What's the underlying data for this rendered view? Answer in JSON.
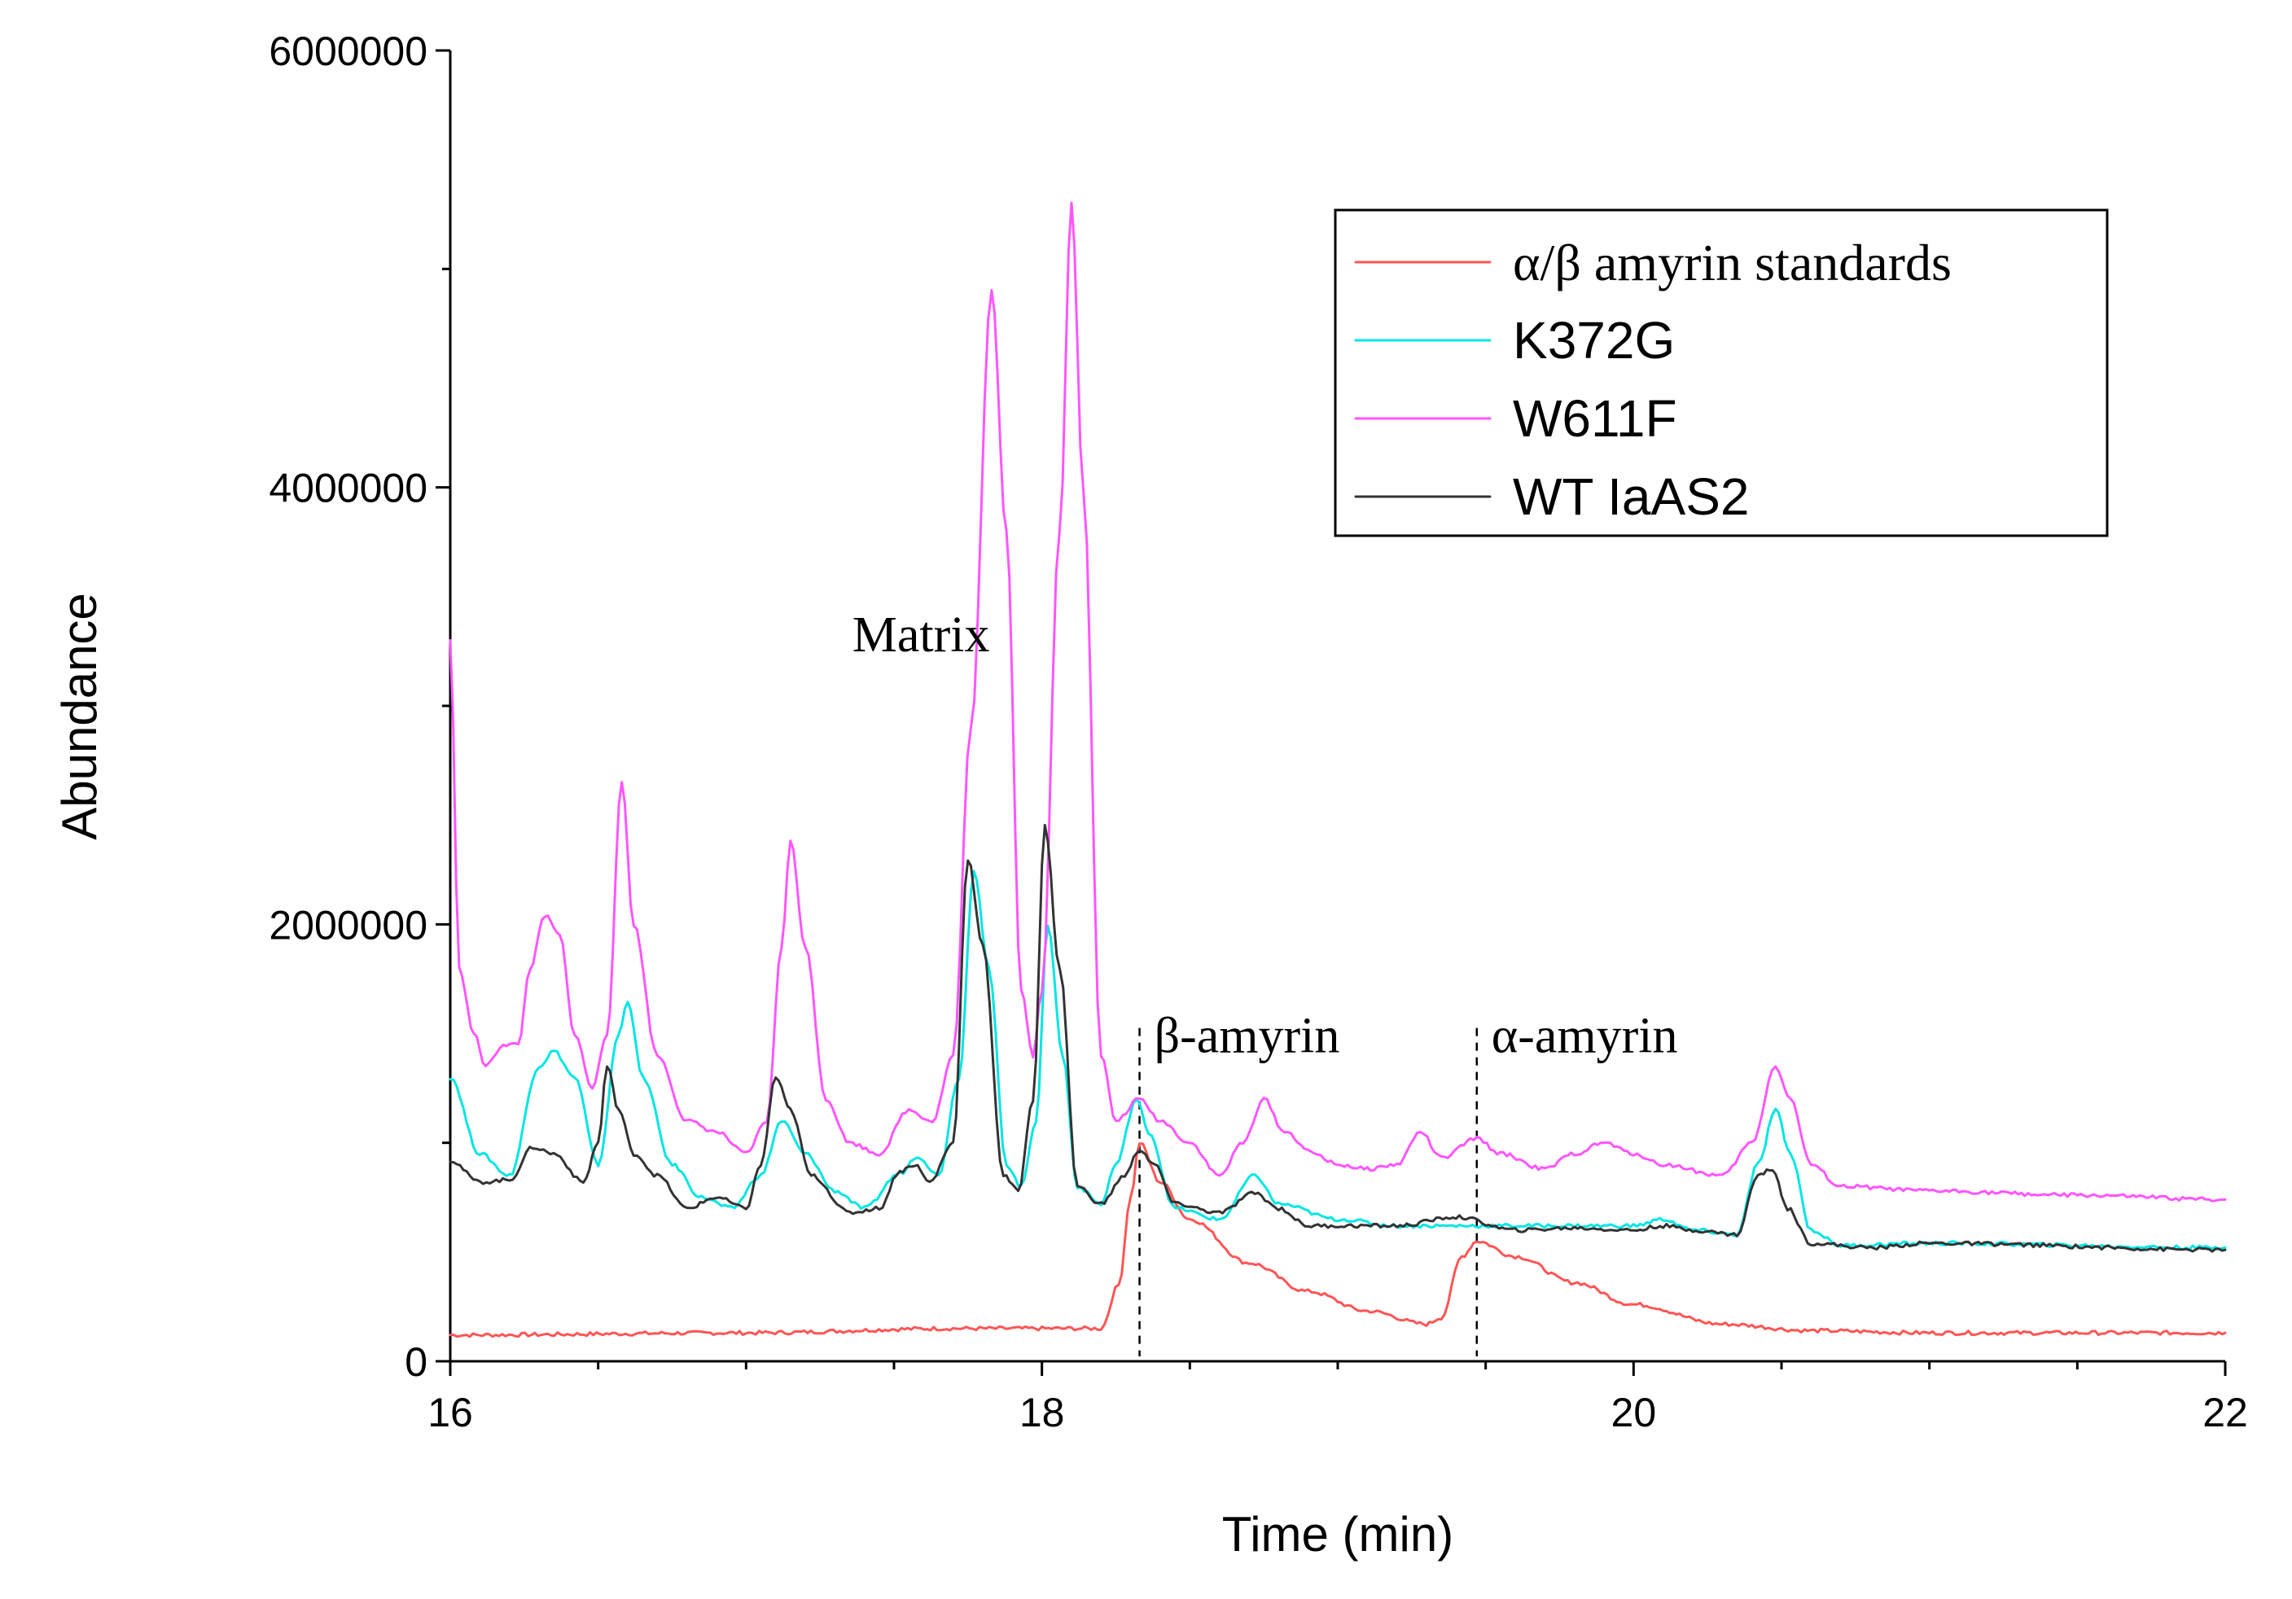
{
  "chart_data": {
    "type": "line",
    "title": "",
    "xlabel": "Time (min)",
    "ylabel": "Abundance",
    "xlim": [
      16,
      22
    ],
    "ylim": [
      0,
      6000000
    ],
    "x_ticks": [
      "16",
      "18",
      "20",
      "22"
    ],
    "y_ticks": [
      "0",
      "2000000",
      "4000000",
      "6000000"
    ],
    "grid": false,
    "legend_position": "top-right",
    "annotations": [
      {
        "text": "Matrix",
        "x": 17.55,
        "y": 3250000
      },
      {
        "text": "β-amyrin",
        "x": 18.33,
        "y": 1600000
      },
      {
        "text": "α-amyrin",
        "x": 19.47,
        "y": 1600000
      }
    ],
    "markers": [
      {
        "label": "β-amyrin",
        "x": 18.33
      },
      {
        "label": "α-amyrin",
        "x": 19.47
      }
    ],
    "series": [
      {
        "name": "α/β amyrin standards",
        "color": "#ff5555",
        "points": [
          [
            16,
            120000
          ],
          [
            17,
            130000
          ],
          [
            17.7,
            150000
          ],
          [
            18.2,
            150000
          ],
          [
            18.26,
            350000
          ],
          [
            18.3,
            750000
          ],
          [
            18.33,
            1000000
          ],
          [
            18.4,
            820000
          ],
          [
            18.5,
            650000
          ],
          [
            18.7,
            450000
          ],
          [
            18.9,
            320000
          ],
          [
            19.1,
            230000
          ],
          [
            19.3,
            170000
          ],
          [
            19.35,
            200000
          ],
          [
            19.42,
            480000
          ],
          [
            19.47,
            550000
          ],
          [
            19.6,
            480000
          ],
          [
            19.8,
            360000
          ],
          [
            20.0,
            260000
          ],
          [
            20.3,
            170000
          ],
          [
            20.6,
            140000
          ],
          [
            21,
            130000
          ],
          [
            22,
            130000
          ]
        ]
      },
      {
        "name": "K372G",
        "color": "#00e5e5",
        "points": [
          [
            16,
            1300000
          ],
          [
            16.1,
            950000
          ],
          [
            16.2,
            850000
          ],
          [
            16.3,
            1350000
          ],
          [
            16.35,
            1420000
          ],
          [
            16.42,
            1300000
          ],
          [
            16.5,
            900000
          ],
          [
            16.57,
            1500000
          ],
          [
            16.6,
            1650000
          ],
          [
            16.65,
            1300000
          ],
          [
            16.75,
            900000
          ],
          [
            16.85,
            750000
          ],
          [
            16.95,
            700000
          ],
          [
            17.05,
            850000
          ],
          [
            17.12,
            1100000
          ],
          [
            17.2,
            950000
          ],
          [
            17.3,
            780000
          ],
          [
            17.4,
            700000
          ],
          [
            17.52,
            860000
          ],
          [
            17.58,
            940000
          ],
          [
            17.65,
            850000
          ],
          [
            17.72,
            1300000
          ],
          [
            17.77,
            2250000
          ],
          [
            17.82,
            1800000
          ],
          [
            17.88,
            900000
          ],
          [
            17.93,
            800000
          ],
          [
            17.98,
            1100000
          ],
          [
            18.02,
            2000000
          ],
          [
            18.07,
            1400000
          ],
          [
            18.12,
            800000
          ],
          [
            18.2,
            720000
          ],
          [
            18.25,
            900000
          ],
          [
            18.32,
            1200000
          ],
          [
            18.36,
            1050000
          ],
          [
            18.45,
            700000
          ],
          [
            18.6,
            650000
          ],
          [
            18.72,
            850000
          ],
          [
            18.8,
            720000
          ],
          [
            19.0,
            650000
          ],
          [
            19.2,
            620000
          ],
          [
            19.5,
            620000
          ],
          [
            19.7,
            620000
          ],
          [
            20.0,
            620000
          ],
          [
            20.1,
            650000
          ],
          [
            20.2,
            600000
          ],
          [
            20.35,
            580000
          ],
          [
            20.42,
            900000
          ],
          [
            20.48,
            1150000
          ],
          [
            20.53,
            950000
          ],
          [
            20.6,
            600000
          ],
          [
            20.7,
            530000
          ],
          [
            21,
            540000
          ],
          [
            22,
            520000
          ]
        ]
      },
      {
        "name": "W611F",
        "color": "#ff55ff",
        "points": [
          [
            16,
            3300000
          ],
          [
            16.03,
            1800000
          ],
          [
            16.08,
            1500000
          ],
          [
            16.12,
            1350000
          ],
          [
            16.18,
            1450000
          ],
          [
            16.23,
            1450000
          ],
          [
            16.27,
            1800000
          ],
          [
            16.32,
            2040000
          ],
          [
            16.37,
            1950000
          ],
          [
            16.42,
            1500000
          ],
          [
            16.48,
            1250000
          ],
          [
            16.53,
            1500000
          ],
          [
            16.58,
            2650000
          ],
          [
            16.62,
            2000000
          ],
          [
            16.7,
            1400000
          ],
          [
            16.8,
            1100000
          ],
          [
            16.9,
            1050000
          ],
          [
            17.0,
            950000
          ],
          [
            17.07,
            1100000
          ],
          [
            17.12,
            1900000
          ],
          [
            17.15,
            2380000
          ],
          [
            17.2,
            1900000
          ],
          [
            17.27,
            1200000
          ],
          [
            17.35,
            1000000
          ],
          [
            17.45,
            950000
          ],
          [
            17.55,
            1150000
          ],
          [
            17.63,
            1100000
          ],
          [
            17.7,
            1400000
          ],
          [
            17.76,
            2900000
          ],
          [
            17.83,
            4900000
          ],
          [
            17.88,
            3800000
          ],
          [
            17.93,
            1700000
          ],
          [
            17.97,
            1400000
          ],
          [
            18.0,
            1700000
          ],
          [
            18.06,
            3800000
          ],
          [
            18.1,
            5300000
          ],
          [
            18.14,
            4000000
          ],
          [
            18.2,
            1400000
          ],
          [
            18.25,
            1100000
          ],
          [
            18.33,
            1200000
          ],
          [
            18.4,
            1100000
          ],
          [
            18.5,
            1000000
          ],
          [
            18.6,
            850000
          ],
          [
            18.68,
            1000000
          ],
          [
            18.75,
            1200000
          ],
          [
            18.82,
            1050000
          ],
          [
            18.92,
            950000
          ],
          [
            19.0,
            900000
          ],
          [
            19.1,
            880000
          ],
          [
            19.2,
            900000
          ],
          [
            19.28,
            1050000
          ],
          [
            19.35,
            930000
          ],
          [
            19.47,
            1020000
          ],
          [
            19.55,
            950000
          ],
          [
            19.7,
            880000
          ],
          [
            19.8,
            950000
          ],
          [
            19.9,
            1000000
          ],
          [
            20.0,
            950000
          ],
          [
            20.1,
            900000
          ],
          [
            20.3,
            850000
          ],
          [
            20.4,
            1000000
          ],
          [
            20.48,
            1350000
          ],
          [
            20.53,
            1200000
          ],
          [
            20.6,
            900000
          ],
          [
            20.7,
            800000
          ],
          [
            21,
            780000
          ],
          [
            21.5,
            760000
          ],
          [
            22,
            740000
          ]
        ]
      },
      {
        "name": "WT IaAS2",
        "color": "#333333",
        "points": [
          [
            16,
            920000
          ],
          [
            16.1,
            820000
          ],
          [
            16.2,
            830000
          ],
          [
            16.28,
            980000
          ],
          [
            16.35,
            950000
          ],
          [
            16.45,
            820000
          ],
          [
            16.5,
            1000000
          ],
          [
            16.53,
            1350000
          ],
          [
            16.57,
            1150000
          ],
          [
            16.62,
            950000
          ],
          [
            16.7,
            850000
          ],
          [
            16.8,
            700000
          ],
          [
            16.9,
            750000
          ],
          [
            17.0,
            700000
          ],
          [
            17.05,
            900000
          ],
          [
            17.1,
            1300000
          ],
          [
            17.15,
            1150000
          ],
          [
            17.22,
            850000
          ],
          [
            17.35,
            680000
          ],
          [
            17.45,
            700000
          ],
          [
            17.52,
            870000
          ],
          [
            17.57,
            900000
          ],
          [
            17.62,
            820000
          ],
          [
            17.7,
            1000000
          ],
          [
            17.75,
            2300000
          ],
          [
            17.8,
            1900000
          ],
          [
            17.87,
            850000
          ],
          [
            17.92,
            780000
          ],
          [
            17.97,
            1200000
          ],
          [
            18.01,
            2450000
          ],
          [
            18.06,
            1800000
          ],
          [
            18.12,
            800000
          ],
          [
            18.2,
            720000
          ],
          [
            18.28,
            850000
          ],
          [
            18.33,
            970000
          ],
          [
            18.38,
            900000
          ],
          [
            18.45,
            720000
          ],
          [
            18.6,
            680000
          ],
          [
            18.72,
            770000
          ],
          [
            18.8,
            700000
          ],
          [
            18.9,
            620000
          ],
          [
            19.2,
            620000
          ],
          [
            19.4,
            660000
          ],
          [
            19.6,
            600000
          ],
          [
            19.8,
            610000
          ],
          [
            20.0,
            600000
          ],
          [
            20.1,
            620000
          ],
          [
            20.2,
            600000
          ],
          [
            20.35,
            580000
          ],
          [
            20.42,
            850000
          ],
          [
            20.47,
            880000
          ],
          [
            20.52,
            700000
          ],
          [
            20.6,
            540000
          ],
          [
            20.8,
            520000
          ],
          [
            21,
            540000
          ],
          [
            22,
            510000
          ]
        ]
      }
    ]
  }
}
